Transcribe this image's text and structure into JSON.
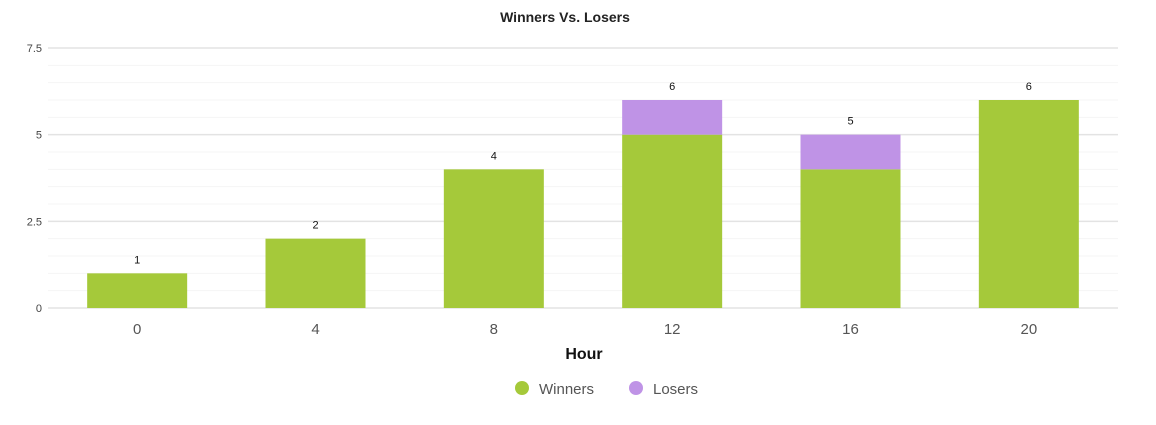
{
  "chart_data": {
    "type": "bar",
    "stacked": true,
    "title": "Winners Vs. Losers",
    "xlabel": "Hour",
    "ylabel": "",
    "categories": [
      "0",
      "4",
      "8",
      "12",
      "16",
      "20"
    ],
    "series": [
      {
        "name": "Winners",
        "values": [
          1,
          2,
          4,
          5,
          4,
          6
        ],
        "color": "#a5c93a"
      },
      {
        "name": "Losers",
        "values": [
          0,
          0,
          0,
          1,
          1,
          0
        ],
        "color": "#bf93e6"
      }
    ],
    "totals": [
      "1",
      "2",
      "4",
      "6",
      "5",
      "6"
    ],
    "ylim": [
      0,
      7.5
    ],
    "yticks": [
      "0",
      "2.5",
      "5",
      "7.5"
    ],
    "grid": true,
    "legend_position": "bottom-center"
  }
}
